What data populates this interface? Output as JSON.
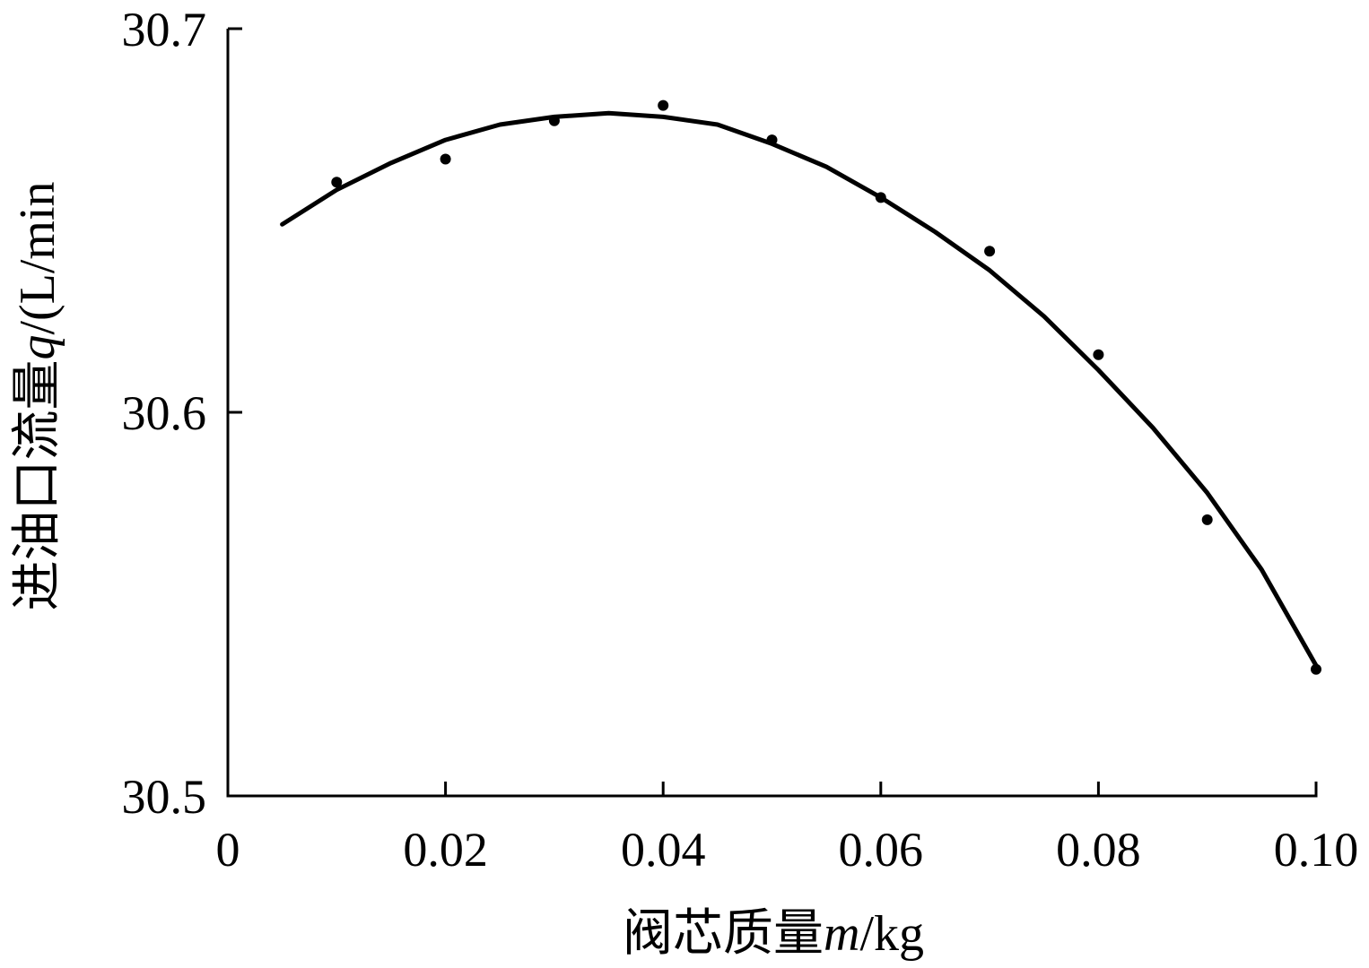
{
  "chart_data": {
    "type": "scatter",
    "title": "",
    "xlabel": {
      "prefix": "阀芯质量",
      "var": "m",
      "suffix": "/kg"
    },
    "ylabel": {
      "prefix": "进油口流量",
      "var": "q",
      "suffix": "/(L/min"
    },
    "xlim": [
      0,
      0.1
    ],
    "ylim": [
      30.5,
      30.7
    ],
    "x_ticks": [
      {
        "value": 0,
        "label": "0"
      },
      {
        "value": 0.02,
        "label": "0.02"
      },
      {
        "value": 0.04,
        "label": "0.04"
      },
      {
        "value": 0.06,
        "label": "0.06"
      },
      {
        "value": 0.08,
        "label": "0.08"
      },
      {
        "value": 0.1,
        "label": "0.10"
      }
    ],
    "y_ticks": [
      {
        "value": 30.5,
        "label": "30.5"
      },
      {
        "value": 30.6,
        "label": "30.6"
      },
      {
        "value": 30.7,
        "label": "30.7"
      }
    ],
    "grid": false,
    "series": [
      {
        "kind": "points",
        "color": "#000000",
        "x": [
          0.01,
          0.02,
          0.03,
          0.04,
          0.05,
          0.06,
          0.07,
          0.08,
          0.09,
          0.1
        ],
        "y": [
          30.66,
          30.666,
          30.676,
          30.68,
          30.671,
          30.656,
          30.642,
          30.615,
          30.572,
          30.533
        ]
      },
      {
        "kind": "fitted-curve",
        "color": "#000000",
        "x": [
          0.005,
          0.01,
          0.015,
          0.02,
          0.025,
          0.03,
          0.035,
          0.04,
          0.045,
          0.05,
          0.055,
          0.06,
          0.065,
          0.07,
          0.075,
          0.08,
          0.085,
          0.09,
          0.095,
          0.1
        ],
        "y": [
          30.649,
          30.658,
          30.665,
          30.671,
          30.675,
          30.677,
          30.678,
          30.677,
          30.675,
          30.67,
          30.664,
          30.656,
          30.647,
          30.637,
          30.625,
          30.611,
          30.596,
          30.579,
          30.559,
          30.534
        ]
      }
    ]
  }
}
